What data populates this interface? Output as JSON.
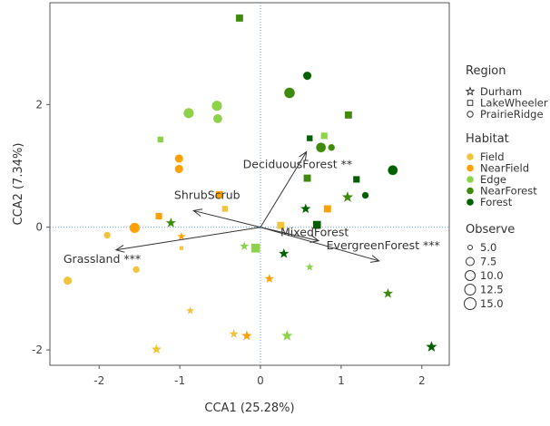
{
  "chart_data": {
    "type": "scatter",
    "xlabel": "CCA1 (25.28%)",
    "ylabel": "CCA2 (7.34%)",
    "xlim": [
      -2.61,
      2.34
    ],
    "ylim": [
      -2.25,
      3.66
    ],
    "xticks": [
      -2,
      -1,
      0,
      1,
      2
    ],
    "yticks": [
      -2,
      0,
      2
    ],
    "grid": false,
    "reference_lines": {
      "x": 0,
      "y": 0,
      "style": "dotted"
    },
    "colors": {
      "Field": "#F0C43C",
      "NearField": "#FF9F00",
      "Edge": "#8ED24A",
      "NearForest": "#3F8A0C",
      "Forest": "#006000"
    },
    "legend": {
      "placement": "right",
      "region": {
        "title": "Region",
        "items": [
          {
            "label": "Durham",
            "shape": "star"
          },
          {
            "label": "LakeWheeler",
            "shape": "square"
          },
          {
            "label": "PrairieRidge",
            "shape": "circle"
          }
        ]
      },
      "habitat": {
        "title": "Habitat",
        "items": [
          "Field",
          "NearField",
          "Edge",
          "NearForest",
          "Forest"
        ]
      },
      "observe": {
        "title": "Observe",
        "items": [
          "5.0",
          "7.5",
          "10.0",
          "12.5",
          "15.0"
        ],
        "values": [
          5,
          7.5,
          10,
          12.5,
          15
        ]
      }
    },
    "arrows": [
      {
        "label": "ShrubScrub",
        "x": -0.83,
        "y": 0.27
      },
      {
        "label": "Grassland ***",
        "x": -1.79,
        "y": -0.37
      },
      {
        "label": "DeciduousForest **",
        "x": 0.57,
        "y": 1.23
      },
      {
        "label": "MixedForest",
        "x": 0.72,
        "y": -0.22
      },
      {
        "label": "EvergreenForest ***",
        "x": 1.47,
        "y": -0.55
      }
    ],
    "points": [
      {
        "x": -0.26,
        "y": 3.41,
        "region": "LakeWheeler",
        "habitat": "NearForest",
        "observe": 10
      },
      {
        "x": -0.89,
        "y": 1.86,
        "region": "PrairieRidge",
        "habitat": "Edge",
        "observe": 12.5
      },
      {
        "x": -0.54,
        "y": 1.98,
        "region": "PrairieRidge",
        "habitat": "Edge",
        "observe": 12.5
      },
      {
        "x": -0.53,
        "y": 1.77,
        "region": "PrairieRidge",
        "habitat": "Edge",
        "observe": 11
      },
      {
        "x": -1.24,
        "y": 1.43,
        "region": "LakeWheeler",
        "habitat": "Edge",
        "observe": 8
      },
      {
        "x": -1.01,
        "y": 1.12,
        "region": "PrairieRidge",
        "habitat": "NearField",
        "observe": 10
      },
      {
        "x": -1.01,
        "y": 0.95,
        "region": "PrairieRidge",
        "habitat": "NearField",
        "observe": 10
      },
      {
        "x": -0.51,
        "y": 0.53,
        "region": "LakeWheeler",
        "habitat": "NearField",
        "observe": 10
      },
      {
        "x": -0.44,
        "y": 0.3,
        "region": "LakeWheeler",
        "habitat": "Field",
        "observe": 8
      },
      {
        "x": -1.26,
        "y": 0.18,
        "region": "LakeWheeler",
        "habitat": "NearField",
        "observe": 9
      },
      {
        "x": -1.11,
        "y": 0.07,
        "region": "Durham",
        "habitat": "NearForest",
        "observe": 10
      },
      {
        "x": -1.56,
        "y": -0.01,
        "region": "PrairieRidge",
        "habitat": "NearField",
        "observe": 12.5
      },
      {
        "x": -1.9,
        "y": -0.13,
        "region": "PrairieRidge",
        "habitat": "Field",
        "observe": 8
      },
      {
        "x": -0.98,
        "y": -0.15,
        "region": "Durham",
        "habitat": "NearField",
        "observe": 8
      },
      {
        "x": -0.98,
        "y": -0.34,
        "region": "LakeWheeler",
        "habitat": "Field",
        "observe": 5
      },
      {
        "x": -1.54,
        "y": -0.69,
        "region": "PrairieRidge",
        "habitat": "Field",
        "observe": 8
      },
      {
        "x": -2.39,
        "y": -0.87,
        "region": "PrairieRidge",
        "habitat": "Field",
        "observe": 10
      },
      {
        "x": -0.2,
        "y": -0.31,
        "region": "Durham",
        "habitat": "Edge",
        "observe": 9
      },
      {
        "x": -0.06,
        "y": -0.34,
        "region": "LakeWheeler",
        "habitat": "Edge",
        "observe": 12.5
      },
      {
        "x": -0.87,
        "y": -1.36,
        "region": "Durham",
        "habitat": "Field",
        "observe": 8
      },
      {
        "x": -1.29,
        "y": -1.99,
        "region": "Durham",
        "habitat": "Field",
        "observe": 10
      },
      {
        "x": -0.33,
        "y": -1.74,
        "region": "Durham",
        "habitat": "Field",
        "observe": 9
      },
      {
        "x": -0.17,
        "y": -1.77,
        "region": "Durham",
        "habitat": "NearField",
        "observe": 10
      },
      {
        "x": 0.58,
        "y": 2.47,
        "region": "PrairieRidge",
        "habitat": "Forest",
        "observe": 10
      },
      {
        "x": 0.36,
        "y": 2.19,
        "region": "PrairieRidge",
        "habitat": "NearForest",
        "observe": 13
      },
      {
        "x": 1.09,
        "y": 1.83,
        "region": "LakeWheeler",
        "habitat": "NearForest",
        "observe": 10
      },
      {
        "x": 0.61,
        "y": 1.45,
        "region": "LakeWheeler",
        "habitat": "Forest",
        "observe": 8
      },
      {
        "x": 0.79,
        "y": 1.49,
        "region": "LakeWheeler",
        "habitat": "Edge",
        "observe": 9
      },
      {
        "x": 0.75,
        "y": 1.3,
        "region": "PrairieRidge",
        "habitat": "NearForest",
        "observe": 12
      },
      {
        "x": 0.88,
        "y": 1.3,
        "region": "PrairieRidge",
        "habitat": "NearForest",
        "observe": 8
      },
      {
        "x": 1.64,
        "y": 0.93,
        "region": "PrairieRidge",
        "habitat": "Forest",
        "observe": 12
      },
      {
        "x": 0.58,
        "y": 0.8,
        "region": "LakeWheeler",
        "habitat": "NearForest",
        "observe": 10
      },
      {
        "x": 1.19,
        "y": 0.78,
        "region": "LakeWheeler",
        "habitat": "Forest",
        "observe": 9
      },
      {
        "x": 1.08,
        "y": 0.49,
        "region": "Durham",
        "habitat": "NearForest",
        "observe": 11
      },
      {
        "x": 1.3,
        "y": 0.52,
        "region": "PrairieRidge",
        "habitat": "Forest",
        "observe": 8
      },
      {
        "x": 0.56,
        "y": 0.3,
        "region": "Durham",
        "habitat": "Forest",
        "observe": 10
      },
      {
        "x": 0.83,
        "y": 0.3,
        "region": "LakeWheeler",
        "habitat": "NearField",
        "observe": 10
      },
      {
        "x": 0.25,
        "y": 0.03,
        "region": "LakeWheeler",
        "habitat": "Field",
        "observe": 10
      },
      {
        "x": 0.7,
        "y": 0.04,
        "region": "LakeWheeler",
        "habitat": "Forest",
        "observe": 11
      },
      {
        "x": 0.29,
        "y": -0.43,
        "region": "Durham",
        "habitat": "Forest",
        "observe": 10
      },
      {
        "x": 0.61,
        "y": -0.65,
        "region": "Durham",
        "habitat": "Edge",
        "observe": 8
      },
      {
        "x": 0.11,
        "y": -0.84,
        "region": "Durham",
        "habitat": "NearField",
        "observe": 9
      },
      {
        "x": 1.58,
        "y": -1.08,
        "region": "Durham",
        "habitat": "NearForest",
        "observe": 10
      },
      {
        "x": 0.33,
        "y": -1.77,
        "region": "Durham",
        "habitat": "Edge",
        "observe": 11
      },
      {
        "x": 2.12,
        "y": -1.95,
        "region": "Durham",
        "habitat": "Forest",
        "observe": 11
      }
    ]
  }
}
